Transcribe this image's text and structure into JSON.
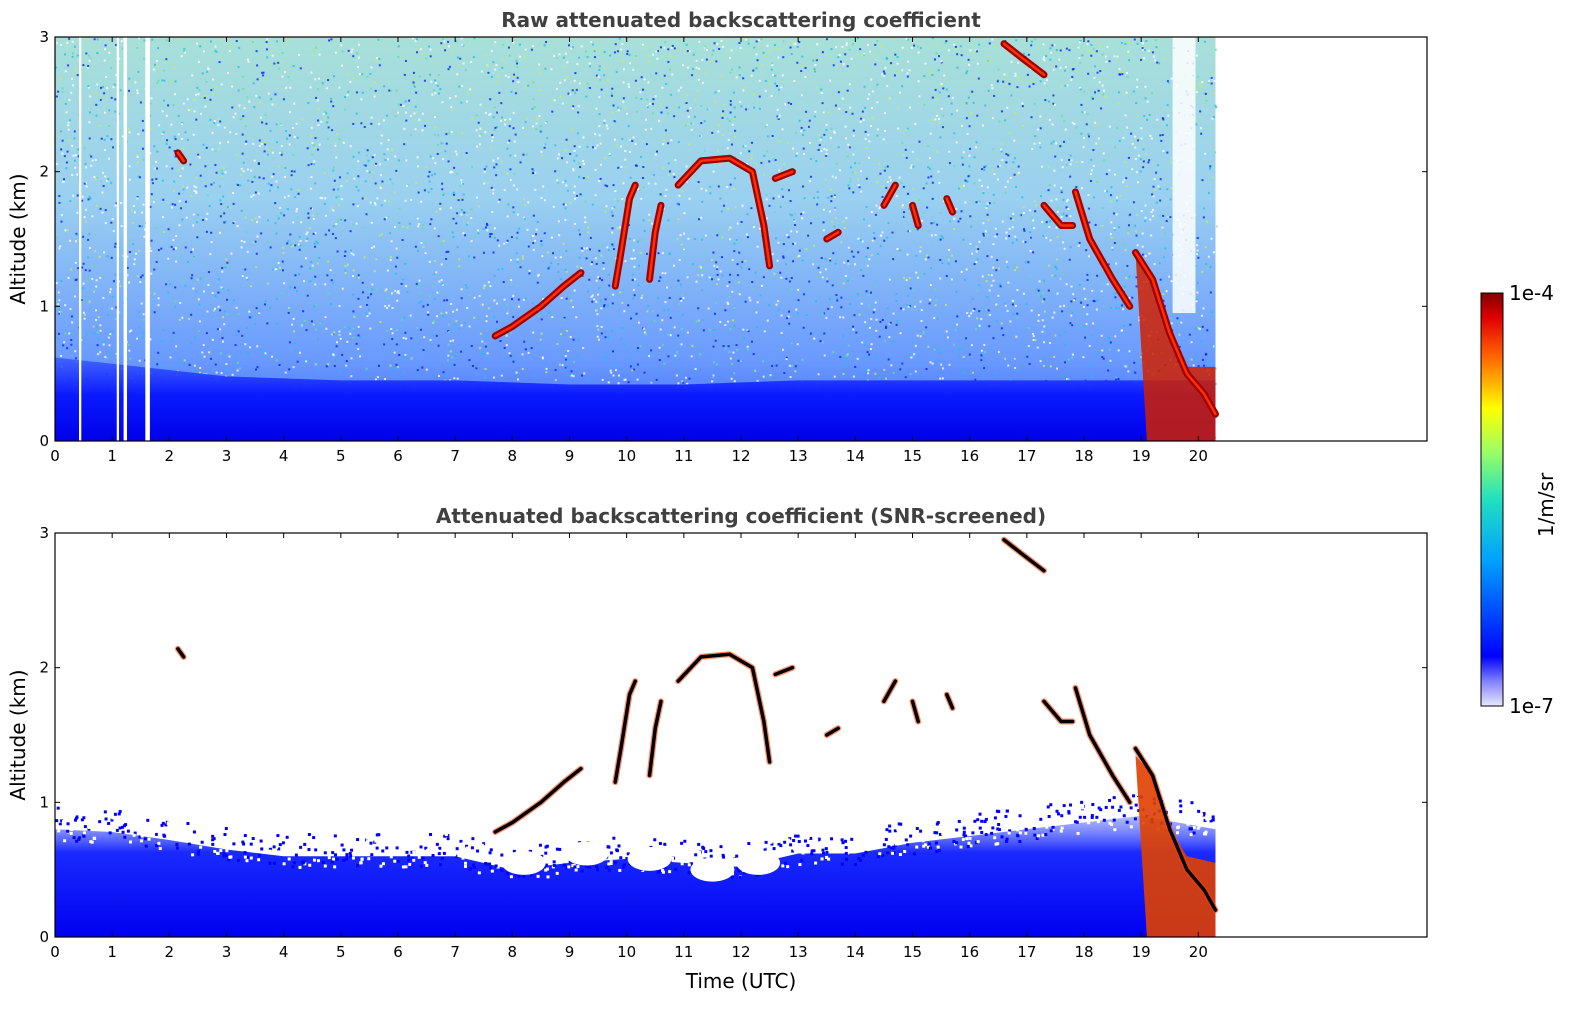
{
  "chart_data": [
    {
      "type": "heatmap",
      "title": "Raw attenuated backscattering coefficient",
      "xlabel": "",
      "ylabel": "Altitude (km)",
      "x_ticks": [
        "0",
        "1",
        "2",
        "3",
        "4",
        "5",
        "6",
        "7",
        "8",
        "9",
        "10",
        "11",
        "12",
        "13",
        "14",
        "15",
        "16",
        "17",
        "18",
        "19",
        "20"
      ],
      "y_ticks": [
        "0",
        "1",
        "2",
        "3"
      ],
      "xlim": [
        0,
        24
      ],
      "ylim": [
        0,
        3
      ],
      "data_end_time_utc": 20.3,
      "data_gaps_utc": [
        [
          0.42,
          0.46
        ],
        [
          1.08,
          1.12
        ],
        [
          1.2,
          1.26
        ],
        [
          1.58,
          1.66
        ]
      ],
      "boundary_layer": [
        {
          "t": 0,
          "top": 0.62
        },
        {
          "t": 1.5,
          "top": 0.55
        },
        {
          "t": 3,
          "top": 0.48
        },
        {
          "t": 5,
          "top": 0.45
        },
        {
          "t": 7,
          "top": 0.45
        },
        {
          "t": 9,
          "top": 0.42
        },
        {
          "t": 11,
          "top": 0.42
        },
        {
          "t": 13,
          "top": 0.45
        },
        {
          "t": 15,
          "top": 0.45
        },
        {
          "t": 17,
          "top": 0.45
        },
        {
          "t": 19,
          "top": 0.45
        },
        {
          "t": 20.3,
          "top": 0.45
        }
      ],
      "cloud_traces": [
        [
          [
            2.15,
            2.14
          ],
          [
            2.25,
            2.08
          ]
        ],
        [
          [
            7.7,
            0.78
          ],
          [
            8.0,
            0.85
          ],
          [
            8.5,
            1.0
          ],
          [
            8.9,
            1.15
          ],
          [
            9.2,
            1.25
          ]
        ],
        [
          [
            9.8,
            1.15
          ],
          [
            9.9,
            1.4
          ],
          [
            10.05,
            1.8
          ],
          [
            10.15,
            1.9
          ]
        ],
        [
          [
            10.4,
            1.2
          ],
          [
            10.5,
            1.55
          ],
          [
            10.6,
            1.75
          ]
        ],
        [
          [
            10.9,
            1.9
          ],
          [
            11.3,
            2.08
          ],
          [
            11.8,
            2.1
          ],
          [
            12.2,
            2.0
          ],
          [
            12.4,
            1.6
          ],
          [
            12.5,
            1.3
          ]
        ],
        [
          [
            12.6,
            1.95
          ],
          [
            12.9,
            2.0
          ]
        ],
        [
          [
            13.5,
            1.5
          ],
          [
            13.7,
            1.55
          ]
        ],
        [
          [
            14.5,
            1.75
          ],
          [
            14.7,
            1.9
          ]
        ],
        [
          [
            15.0,
            1.75
          ],
          [
            15.1,
            1.6
          ]
        ],
        [
          [
            15.6,
            1.8
          ],
          [
            15.7,
            1.7
          ]
        ],
        [
          [
            16.6,
            2.95
          ],
          [
            16.9,
            2.85
          ],
          [
            17.3,
            2.72
          ]
        ],
        [
          [
            17.3,
            1.75
          ],
          [
            17.6,
            1.6
          ],
          [
            17.8,
            1.6
          ]
        ],
        [
          [
            17.85,
            1.85
          ],
          [
            18.1,
            1.5
          ],
          [
            18.5,
            1.2
          ],
          [
            18.8,
            1.0
          ]
        ],
        [
          [
            18.9,
            1.4
          ],
          [
            19.2,
            1.2
          ],
          [
            19.5,
            0.8
          ],
          [
            19.8,
            0.5
          ],
          [
            20.1,
            0.35
          ],
          [
            20.3,
            0.2
          ]
        ]
      ]
    },
    {
      "type": "heatmap",
      "title": "Attenuated backscattering coefficient (SNR-screened)",
      "xlabel": "Time (UTC)",
      "ylabel": "Altitude (km)",
      "x_ticks": [
        "0",
        "1",
        "2",
        "3",
        "4",
        "5",
        "6",
        "7",
        "8",
        "9",
        "10",
        "11",
        "12",
        "13",
        "14",
        "15",
        "16",
        "17",
        "18",
        "19",
        "20"
      ],
      "y_ticks": [
        "0",
        "1",
        "2",
        "3"
      ],
      "xlim": [
        0,
        24
      ],
      "ylim": [
        0,
        3
      ],
      "data_end_time_utc": 20.3,
      "screened_layer_top": [
        {
          "t": 0,
          "top": 0.8
        },
        {
          "t": 1,
          "top": 0.78
        },
        {
          "t": 2,
          "top": 0.72
        },
        {
          "t": 3,
          "top": 0.65
        },
        {
          "t": 4,
          "top": 0.6
        },
        {
          "t": 5,
          "top": 0.6
        },
        {
          "t": 6,
          "top": 0.6
        },
        {
          "t": 7,
          "top": 0.6
        },
        {
          "t": 8,
          "top": 0.5
        },
        {
          "t": 9,
          "top": 0.55
        },
        {
          "t": 10,
          "top": 0.58
        },
        {
          "t": 11,
          "top": 0.55
        },
        {
          "t": 12,
          "top": 0.52
        },
        {
          "t": 13,
          "top": 0.62
        },
        {
          "t": 14,
          "top": 0.62
        },
        {
          "t": 15,
          "top": 0.7
        },
        {
          "t": 16,
          "top": 0.75
        },
        {
          "t": 17,
          "top": 0.8
        },
        {
          "t": 18,
          "top": 0.85
        },
        {
          "t": 19,
          "top": 0.9
        },
        {
          "t": 20.3,
          "top": 0.8
        }
      ]
    }
  ],
  "colorbar": {
    "label": "1/m/sr",
    "max_label": "1e-4",
    "min_label": "1e-7",
    "scale": "log",
    "range": [
      1e-07,
      0.0001
    ],
    "colormap": "jet"
  }
}
